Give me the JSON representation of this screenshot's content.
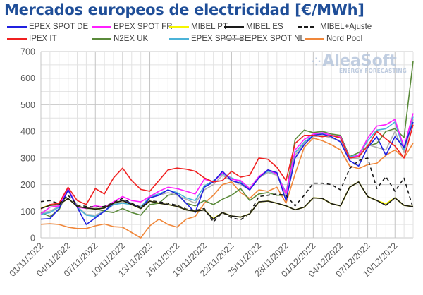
{
  "chart_data": {
    "type": "line",
    "title": "Mercados europeos de electricidad [€/MWh]",
    "xlabel": "",
    "ylabel": "",
    "ylim": [
      0,
      700
    ],
    "yticks": [
      "0",
      "100",
      "200",
      "300",
      "400",
      "500",
      "600",
      "700"
    ],
    "grid": true,
    "legend_position": "top",
    "x": [
      "01/11/2022",
      "02/11/2022",
      "03/11/2022",
      "04/11/2022",
      "05/11/2022",
      "06/11/2022",
      "07/11/2022",
      "08/11/2022",
      "09/11/2022",
      "10/11/2022",
      "11/11/2022",
      "12/11/2022",
      "13/11/2022",
      "14/11/2022",
      "15/11/2022",
      "16/11/2022",
      "17/11/2022",
      "18/11/2022",
      "19/11/2022",
      "20/11/2022",
      "21/11/2022",
      "22/11/2022",
      "23/11/2022",
      "24/11/2022",
      "25/11/2022",
      "26/11/2022",
      "27/11/2022",
      "28/11/2022",
      "29/11/2022",
      "30/11/2022",
      "01/12/2022",
      "02/12/2022",
      "03/12/2022",
      "04/12/2022",
      "05/12/2022",
      "06/12/2022",
      "07/12/2022",
      "08/12/2022",
      "09/12/2022",
      "10/12/2022",
      "11/12/2022",
      "12/12/2022"
    ],
    "xtick_labels": [
      "01/11/2022",
      "04/11/2022",
      "07/11/2022",
      "10/11/2022",
      "13/11/2022",
      "16/11/2022",
      "19/11/2022",
      "22/11/2022",
      "25/11/2022",
      "28/11/2022",
      "01/12/2022",
      "04/12/2022",
      "07/12/2022",
      "10/12/2022"
    ],
    "series": [
      {
        "name": "EPEX SPOT DE",
        "color": "#2020e0",
        "dash": false,
        "values": [
          70,
          72,
          110,
          180,
          115,
          50,
          75,
          100,
          130,
          140,
          130,
          110,
          150,
          160,
          180,
          165,
          130,
          95,
          190,
          210,
          250,
          215,
          205,
          180,
          225,
          255,
          245,
          140,
          300,
          350,
          385,
          390,
          380,
          360,
          290,
          270,
          340,
          380,
          310,
          380,
          340,
          435
        ]
      },
      {
        "name": "EPEX SPOT FR",
        "color": "#ff1fff",
        "dash": false,
        "values": [
          90,
          115,
          120,
          185,
          115,
          110,
          120,
          115,
          135,
          155,
          140,
          135,
          155,
          175,
          190,
          185,
          175,
          165,
          220,
          210,
          245,
          220,
          215,
          185,
          230,
          255,
          240,
          165,
          330,
          370,
          390,
          395,
          385,
          380,
          300,
          310,
          375,
          420,
          425,
          445,
          340,
          468
        ]
      },
      {
        "name": "MIBEL PT",
        "color": "#f5f500",
        "dash": false,
        "values": [
          112,
          122,
          125,
          148,
          118,
          112,
          108,
          112,
          130,
          140,
          125,
          110,
          138,
          130,
          125,
          118,
          105,
          100,
          105,
          72,
          95,
          82,
          78,
          90,
          135,
          138,
          130,
          120,
          105,
          115,
          150,
          148,
          128,
          120,
          190,
          210,
          155,
          140,
          128,
          150,
          122,
          117
        ]
      },
      {
        "name": "MIBEL ES",
        "color": "#1a1a1a",
        "dash": false,
        "values": [
          110,
          122,
          125,
          148,
          118,
          112,
          108,
          112,
          130,
          140,
          125,
          110,
          138,
          130,
          125,
          118,
          105,
          100,
          105,
          70,
          95,
          82,
          78,
          90,
          135,
          138,
          130,
          120,
          105,
          115,
          150,
          148,
          128,
          120,
          190,
          210,
          155,
          140,
          122,
          150,
          122,
          117
        ]
      },
      {
        "name": "MIBEL+Ajuste",
        "color": "#1a1a1a",
        "dash": true,
        "values": [
          136,
          140,
          128,
          160,
          123,
          118,
          115,
          118,
          132,
          148,
          130,
          114,
          140,
          135,
          130,
          122,
          108,
          103,
          110,
          60,
          95,
          75,
          68,
          92,
          155,
          160,
          165,
          160,
          120,
          160,
          205,
          205,
          200,
          180,
          260,
          290,
          300,
          185,
          230,
          175,
          224,
          111
        ]
      },
      {
        "name": "IPEX IT",
        "color": "#f02020",
        "dash": false,
        "values": [
          109,
          125,
          130,
          190,
          140,
          125,
          185,
          165,
          225,
          262,
          215,
          182,
          175,
          215,
          255,
          262,
          258,
          250,
          225,
          210,
          215,
          250,
          228,
          235,
          300,
          295,
          265,
          215,
          355,
          385,
          385,
          380,
          385,
          375,
          300,
          305,
          345,
          400,
          372,
          345,
          300,
          425
        ]
      },
      {
        "name": "N2EX UK",
        "color": "#5a8a3a",
        "dash": false,
        "values": [
          95,
          80,
          105,
          180,
          120,
          110,
          110,
          100,
          95,
          110,
          95,
          85,
          125,
          130,
          160,
          165,
          130,
          120,
          140,
          125,
          145,
          160,
          185,
          140,
          165,
          170,
          160,
          160,
          370,
          405,
          395,
          400,
          390,
          385,
          305,
          320,
          345,
          355,
          400,
          410,
          377,
          664
        ]
      },
      {
        "name": "EPEX SPOT BE",
        "color": "#4bb3d8",
        "dash": false,
        "values": [
          88,
          95,
          115,
          185,
          115,
          85,
          80,
          100,
          125,
          130,
          125,
          115,
          155,
          165,
          180,
          170,
          150,
          140,
          195,
          215,
          240,
          225,
          210,
          185,
          230,
          250,
          240,
          170,
          320,
          360,
          385,
          395,
          385,
          375,
          305,
          310,
          365,
          405,
          410,
          435,
          330,
          455
        ]
      },
      {
        "name": "EPEX SPOT NL",
        "color": "#b0b0b0",
        "dash": false,
        "values": [
          92,
          100,
          118,
          182,
          118,
          88,
          85,
          100,
          125,
          135,
          125,
          118,
          150,
          160,
          170,
          160,
          145,
          130,
          180,
          200,
          235,
          215,
          200,
          180,
          225,
          245,
          235,
          160,
          310,
          355,
          380,
          385,
          375,
          365,
          295,
          300,
          350,
          340,
          330,
          400,
          320,
          445
        ]
      },
      {
        "name": "Nord Pool",
        "color": "#f0873a",
        "dash": false,
        "values": [
          51,
          53,
          50,
          40,
          35,
          35,
          45,
          52,
          42,
          40,
          20,
          0,
          45,
          70,
          50,
          40,
          70,
          80,
          130,
          160,
          200,
          210,
          170,
          148,
          180,
          175,
          190,
          130,
          240,
          340,
          375,
          365,
          350,
          330,
          270,
          260,
          275,
          280,
          310,
          330,
          300,
          356
        ]
      }
    ]
  },
  "watermark": {
    "brand": "AleaSoft",
    "tagline": "ENERGY FORECASTING"
  }
}
